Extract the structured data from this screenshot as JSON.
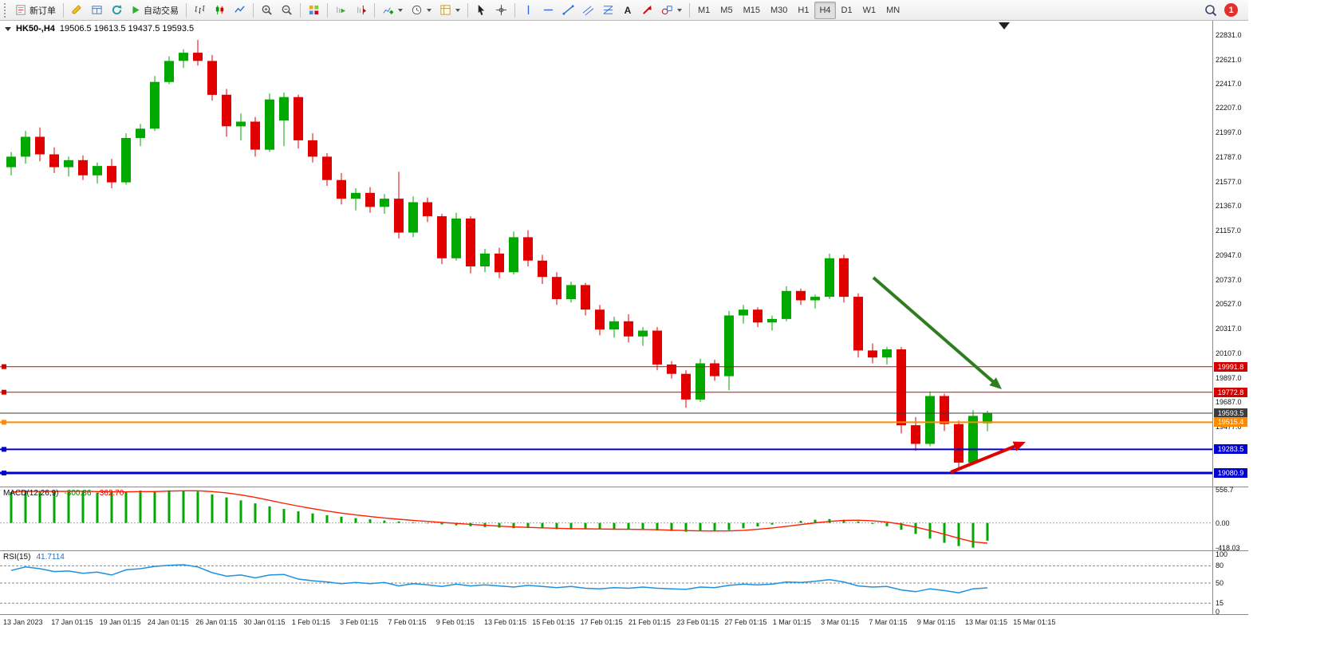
{
  "toolbar": {
    "new_order_label": "新订单",
    "autotrading_label": "自动交易",
    "timeframes": [
      "M1",
      "M5",
      "M15",
      "M30",
      "H1",
      "H4",
      "D1",
      "W1",
      "MN"
    ],
    "active_timeframe": "H4",
    "notification_count": "1",
    "text_tool_glyph": "A"
  },
  "chart": {
    "symbol_period": "HK50-,H4",
    "ohlc": "19506.5 19613.5 19437.5 19593.5"
  },
  "macd_panel": {
    "label": "MACD(12,26,9)",
    "main_value": "-300.86",
    "signal_value": "-362.70"
  },
  "rsi_panel": {
    "label": "RSI(15)",
    "value": "41.7114"
  },
  "colors": {
    "bull": "#00a800",
    "bear": "#e00000",
    "macd_hist": "#00a800",
    "macd_signal": "#ff2000",
    "rsi_line": "#2090e0",
    "line_red": "#d40000",
    "line_black": "#3c3c3c",
    "line_orange": "#ff8a00",
    "line_blue": "#0000d0",
    "arrow_green": "#2e7d1e",
    "arrow_red": "#e00000"
  },
  "chart_data": {
    "type": "candlestick",
    "title": "HK50-,H4",
    "timeframe": "H4",
    "ylim": [
      18965,
      22954
    ],
    "y_ticks": [
      22831,
      22621,
      22417,
      22207,
      21997,
      21787,
      21577,
      21367,
      21157,
      20947,
      20737,
      20527,
      20317,
      20107,
      19897,
      19687,
      19477
    ],
    "scroll_marker_x": 1259,
    "x_labels": [
      "13 Jan 2023",
      "17 Jan 01:15",
      "19 Jan 01:15",
      "24 Jan 01:15",
      "26 Jan 01:15",
      "30 Jan 01:15",
      "1 Feb 01:15",
      "3 Feb 01:15",
      "7 Feb 01:15",
      "9 Feb 01:15",
      "13 Feb 01:15",
      "15 Feb 01:15",
      "17 Feb 01:15",
      "21 Feb 01:15",
      "23 Feb 01:15",
      "27 Feb 01:15",
      "1 Mar 01:15",
      "3 Mar 01:15",
      "7 Mar 01:15",
      "9 Mar 01:15",
      "13 Mar 01:15",
      "15 Mar 01:15"
    ],
    "candles": [
      [
        21700,
        21830,
        21630,
        21790
      ],
      [
        21790,
        22010,
        21730,
        21960
      ],
      [
        21960,
        22040,
        21750,
        21810
      ],
      [
        21810,
        21870,
        21650,
        21700
      ],
      [
        21700,
        21790,
        21620,
        21760
      ],
      [
        21760,
        21800,
        21590,
        21630
      ],
      [
        21630,
        21740,
        21560,
        21710
      ],
      [
        21710,
        21770,
        21520,
        21570
      ],
      [
        21570,
        21990,
        21550,
        21950
      ],
      [
        21950,
        22070,
        21880,
        22030
      ],
      [
        22030,
        22480,
        22010,
        22430
      ],
      [
        22430,
        22650,
        22410,
        22610
      ],
      [
        22610,
        22710,
        22550,
        22680
      ],
      [
        22680,
        22790,
        22570,
        22610
      ],
      [
        22610,
        22660,
        22270,
        22320
      ],
      [
        22320,
        22370,
        21960,
        22050
      ],
      [
        22050,
        22160,
        21930,
        22090
      ],
      [
        22090,
        22130,
        21790,
        21850
      ],
      [
        21850,
        22330,
        21830,
        22280
      ],
      [
        22100,
        22340,
        21880,
        22300
      ],
      [
        22300,
        22320,
        21860,
        21930
      ],
      [
        21930,
        21990,
        21740,
        21790
      ],
      [
        21790,
        21820,
        21540,
        21590
      ],
      [
        21590,
        21650,
        21380,
        21430
      ],
      [
        21430,
        21520,
        21330,
        21480
      ],
      [
        21480,
        21530,
        21310,
        21360
      ],
      [
        21360,
        21470,
        21300,
        21430
      ],
      [
        21430,
        21660,
        21090,
        21140
      ],
      [
        21140,
        21450,
        21100,
        21400
      ],
      [
        21400,
        21440,
        21230,
        21280
      ],
      [
        21280,
        21300,
        20870,
        20920
      ],
      [
        20920,
        21310,
        20900,
        21260
      ],
      [
        21260,
        21280,
        20790,
        20850
      ],
      [
        20850,
        21000,
        20800,
        20960
      ],
      [
        20960,
        21010,
        20750,
        20800
      ],
      [
        20800,
        21150,
        20780,
        21100
      ],
      [
        21100,
        21160,
        20850,
        20900
      ],
      [
        20900,
        20950,
        20700,
        20760
      ],
      [
        20760,
        20800,
        20520,
        20570
      ],
      [
        20570,
        20720,
        20540,
        20690
      ],
      [
        20690,
        20710,
        20430,
        20480
      ],
      [
        20480,
        20520,
        20260,
        20310
      ],
      [
        20310,
        20420,
        20240,
        20380
      ],
      [
        20380,
        20440,
        20200,
        20250
      ],
      [
        20250,
        20330,
        20170,
        20300
      ],
      [
        20300,
        20330,
        19960,
        20010
      ],
      [
        20010,
        20040,
        19890,
        19930
      ],
      [
        19930,
        19960,
        19640,
        19710
      ],
      [
        19710,
        20060,
        19690,
        20020
      ],
      [
        20020,
        20050,
        19870,
        19910
      ],
      [
        19910,
        20470,
        19790,
        20430
      ],
      [
        20430,
        20520,
        20360,
        20480
      ],
      [
        20480,
        20500,
        20330,
        20370
      ],
      [
        20370,
        20430,
        20300,
        20400
      ],
      [
        20400,
        20680,
        20380,
        20640
      ],
      [
        20640,
        20660,
        20520,
        20560
      ],
      [
        20560,
        20610,
        20490,
        20590
      ],
      [
        20590,
        20960,
        20570,
        20920
      ],
      [
        20920,
        20950,
        20540,
        20590
      ],
      [
        20590,
        20620,
        20070,
        20130
      ],
      [
        20130,
        20190,
        20020,
        20070
      ],
      [
        20070,
        20160,
        20010,
        20140
      ],
      [
        20140,
        20160,
        19420,
        19490
      ],
      [
        19490,
        19560,
        19270,
        19330
      ],
      [
        19330,
        19780,
        19310,
        19740
      ],
      [
        19740,
        19760,
        19440,
        19500
      ],
      [
        19500,
        19530,
        19100,
        19170
      ],
      [
        19170,
        19620,
        19150,
        19570
      ],
      [
        19506.5,
        19613.5,
        19437.5,
        19593.5
      ]
    ],
    "hlines": [
      {
        "value": 19991.8,
        "color": "#d40000",
        "width": 1,
        "handle": true
      },
      {
        "value": 19772.8,
        "color": "#d40000",
        "width": 1,
        "handle": true
      },
      {
        "value": 19593.5,
        "color": "#3c3c3c",
        "width": 1,
        "handle": false,
        "role": "current-price"
      },
      {
        "value": 19515.4,
        "color": "#ff8a00",
        "width": 2,
        "handle": true
      },
      {
        "value": 19283.5,
        "color": "#0000d0",
        "width": 2,
        "handle": true
      },
      {
        "value": 19080.9,
        "color": "#0000d0",
        "width": 3,
        "handle": true
      }
    ],
    "annotations": [
      {
        "name": "green-down-arrow",
        "type": "arrow",
        "from": [
          1095,
          322
        ],
        "to": [
          1256,
          462
        ],
        "color": "#2e7d1e",
        "width": 4
      },
      {
        "name": "red-up-arrow",
        "type": "arrow",
        "from": [
          1192,
          566
        ],
        "to": [
          1286,
          528
        ],
        "color": "#e00000",
        "width": 4
      }
    ],
    "indicators": [
      {
        "name": "MACD(12,26,9)",
        "type": "histogram+signal",
        "main_last": -300.86,
        "signal_last": -362.7,
        "ylim": [
          -450,
          600
        ],
        "y_ticks": [
          556.7,
          0,
          -418.03
        ],
        "y_tick_labels": [
          "556.7",
          "0.00",
          "-418.03"
        ],
        "values": [
          520,
          545,
          530,
          540,
          525,
          535,
          510,
          520,
          530,
          545,
          540,
          550,
          545,
          530,
          480,
          430,
          380,
          330,
          280,
          235,
          195,
          160,
          130,
          105,
          80,
          60,
          40,
          25,
          10,
          -10,
          -25,
          -40,
          -55,
          -70,
          -80,
          -90,
          -85,
          -95,
          -105,
          -110,
          -105,
          -100,
          -110,
          -115,
          -120,
          -128,
          -138,
          -148,
          -140,
          -130,
          -120,
          -90,
          -60,
          -28,
          4,
          34,
          54,
          64,
          54,
          24,
          -16,
          -56,
          -116,
          -186,
          -266,
          -336,
          -390,
          -418.03,
          -300.86
        ]
      },
      {
        "name": "RSI(15)",
        "type": "line",
        "last": 41.7114,
        "ylim": [
          0,
          100
        ],
        "levels": [
          80,
          50,
          15
        ],
        "y_ticks": [
          100,
          80,
          50,
          15,
          0
        ],
        "y_tick_labels": [
          "100",
          "80",
          "50",
          "15",
          "0"
        ],
        "values": [
          72,
          78,
          75,
          70,
          71,
          67,
          69,
          64,
          73,
          75,
          79,
          81,
          82,
          78,
          68,
          62,
          64,
          59,
          64,
          65,
          57,
          54,
          52,
          49,
          51,
          49,
          51,
          45,
          49,
          47,
          44,
          48,
          45,
          47,
          45,
          43,
          46,
          44,
          42,
          44,
          41,
          40,
          42,
          41,
          43,
          41,
          40,
          39,
          43,
          42,
          46,
          48,
          47,
          48,
          52,
          51,
          53,
          56,
          52,
          45,
          43,
          44,
          38,
          35,
          40,
          37,
          33,
          40,
          41.71
        ]
      }
    ]
  }
}
